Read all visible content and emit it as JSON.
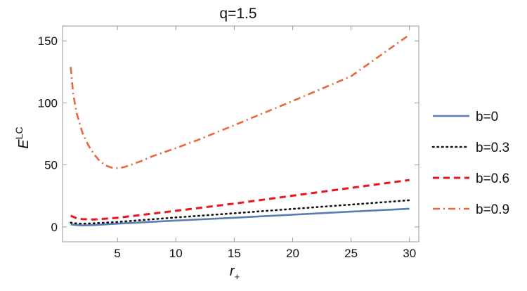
{
  "chart_data": {
    "type": "line",
    "title": "q=1.5",
    "xlabel": {
      "main": "r",
      "sub": "+"
    },
    "ylabel": {
      "main": "E",
      "sup": "LC"
    },
    "xlim": [
      0.3,
      30.8
    ],
    "ylim": [
      -12,
      162
    ],
    "xticks": [
      5,
      10,
      15,
      20,
      25,
      30
    ],
    "yticks": [
      0,
      50,
      100,
      150
    ],
    "grid": false,
    "legend_position": "right",
    "series": [
      {
        "name": "b=0",
        "color": "#5b7bb5",
        "style": "solid",
        "points": [
          [
            1,
            2.0
          ],
          [
            1.5,
            1.5
          ],
          [
            2,
            1.2
          ],
          [
            3,
            1.5
          ],
          [
            5,
            2.6
          ],
          [
            10,
            5.1
          ],
          [
            15,
            7.4
          ],
          [
            20,
            9.9
          ],
          [
            25,
            12.3
          ],
          [
            30,
            14.7
          ]
        ]
      },
      {
        "name": "b=0.3",
        "color": "#111111",
        "style": "dotted",
        "points": [
          [
            1,
            3.5
          ],
          [
            1.5,
            2.8
          ],
          [
            2,
            2.6
          ],
          [
            3,
            2.9
          ],
          [
            5,
            4.0
          ],
          [
            10,
            7.6
          ],
          [
            15,
            11.0
          ],
          [
            20,
            14.5
          ],
          [
            25,
            18.0
          ],
          [
            30,
            21.5
          ]
        ]
      },
      {
        "name": "b=0.6",
        "color": "#e8171f",
        "style": "dashed",
        "points": [
          [
            1,
            9
          ],
          [
            1.5,
            7.0
          ],
          [
            2,
            6.3
          ],
          [
            3,
            6.0
          ],
          [
            5,
            7.3
          ],
          [
            10,
            13.0
          ],
          [
            15,
            18.8
          ],
          [
            20,
            25.2
          ],
          [
            25,
            31.5
          ],
          [
            30,
            37.8
          ]
        ]
      },
      {
        "name": "b=0.9",
        "color": "#e8683a",
        "style": "dashdot",
        "points": [
          [
            1,
            129
          ],
          [
            1.2,
            108
          ],
          [
            1.5,
            92
          ],
          [
            2,
            76
          ],
          [
            2.5,
            66
          ],
          [
            3,
            58.5
          ],
          [
            3.5,
            53
          ],
          [
            4,
            49.5
          ],
          [
            4.5,
            47.8
          ],
          [
            5,
            47.5
          ],
          [
            5.5,
            48
          ],
          [
            6,
            49.5
          ],
          [
            7,
            53
          ],
          [
            8,
            57
          ],
          [
            10,
            63.5
          ],
          [
            12,
            70.5
          ],
          [
            15,
            82
          ],
          [
            20,
            101.5
          ],
          [
            25,
            121.5
          ],
          [
            30,
            155
          ]
        ]
      }
    ]
  }
}
